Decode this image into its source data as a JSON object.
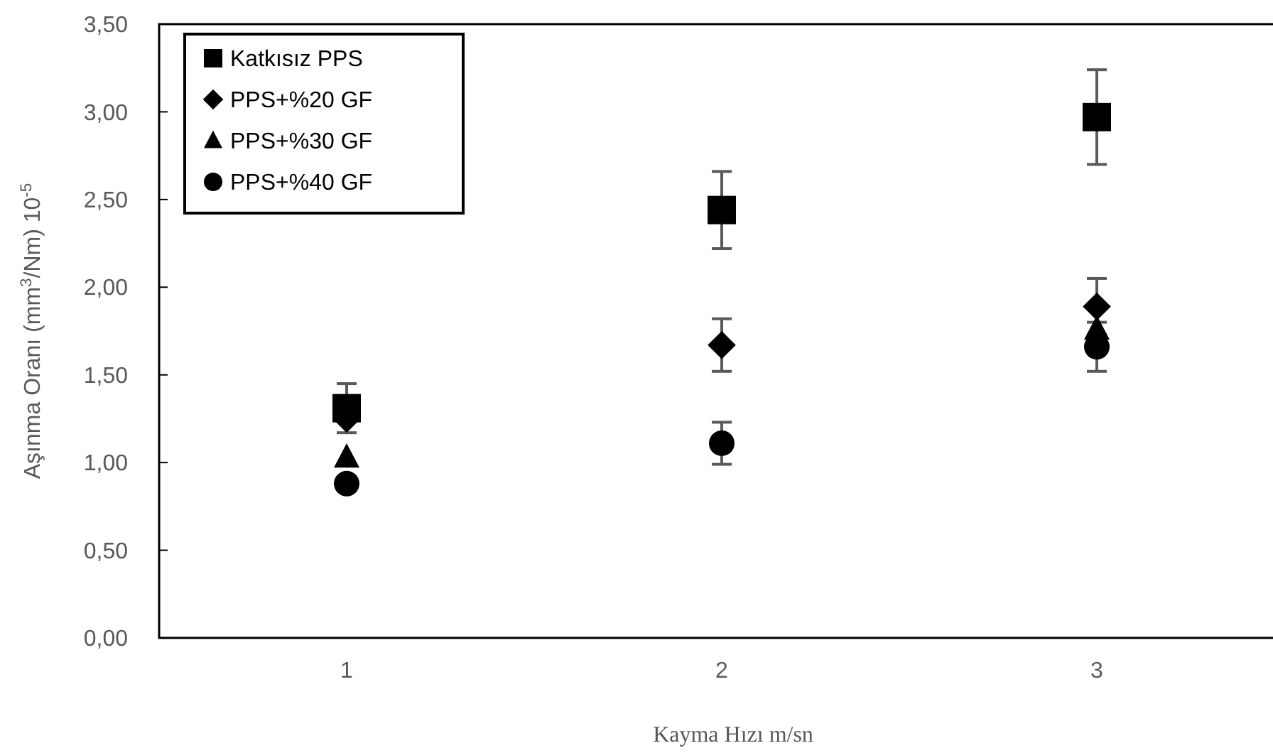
{
  "chart_data": {
    "type": "scatter",
    "xlabel": "Kayma Hızı m/sn",
    "ylabel": "Aşınma Oranı (mm$^{3}$/Nm) 10$^{-5}$",
    "x": [
      1,
      2,
      3
    ],
    "xlim": [
      0.5,
      3.5
    ],
    "xticks": [
      1,
      2,
      3
    ],
    "ylim": [
      0,
      3.5
    ],
    "yticks": [
      {
        "value": 0,
        "label": "0,00"
      },
      {
        "value": 0.5,
        "label": "0,50"
      },
      {
        "value": 1,
        "label": "1,00"
      },
      {
        "value": 1.5,
        "label": "1,50"
      },
      {
        "value": 2,
        "label": "2,00"
      },
      {
        "value": 2.5,
        "label": "2,50"
      },
      {
        "value": 3,
        "label": "3,00"
      },
      {
        "value": 3.5,
        "label": "3,50"
      }
    ],
    "legend": "top left",
    "grid": false,
    "series": [
      {
        "name": "Katkısız PPS",
        "color": "#000000",
        "marker": "square",
        "values": [
          1.31,
          2.44,
          2.97
        ],
        "errors": [
          0.14,
          0.22,
          0.27
        ]
      },
      {
        "name": "PPS+%20 GF",
        "color": "#000000",
        "marker": "diamond",
        "values": [
          1.25,
          1.67,
          1.89
        ],
        "errors": [
          null,
          0.15,
          0.16
        ]
      },
      {
        "name": "PPS+%30 GF",
        "color": "#000000",
        "marker": "triangle",
        "values": [
          1.03,
          null,
          1.76
        ]
      },
      {
        "name": "PPS+%40 GF",
        "color": "#000000",
        "marker": "circle",
        "values": [
          0.88,
          1.11,
          1.66
        ],
        "errors": [
          null,
          0.12,
          0.14
        ]
      }
    ]
  }
}
